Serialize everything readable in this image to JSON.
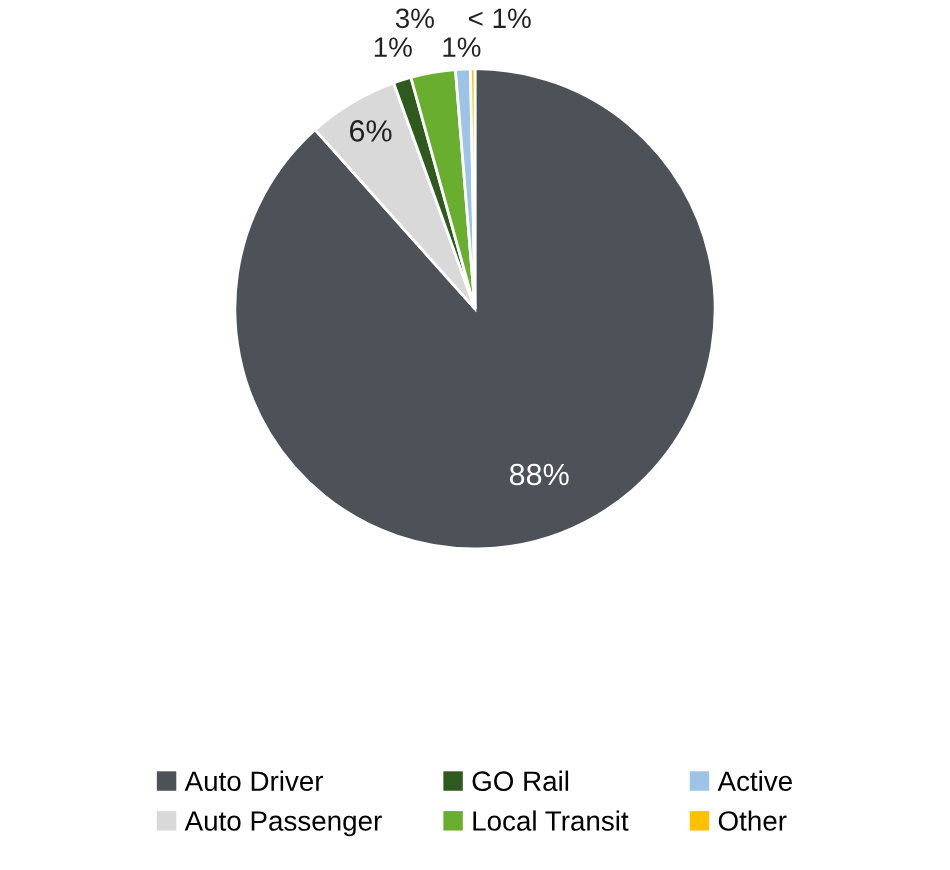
{
  "chart_data": {
    "type": "pie",
    "categories": [
      "Auto Driver",
      "Auto Passenger",
      "GO Rail",
      "Local Transit",
      "Active",
      "Other"
    ],
    "values": [
      88.4,
      6.1,
      1.2,
      3.0,
      1.0,
      0.3
    ],
    "value_labels": [
      "88%",
      "6%",
      "1%",
      "3%",
      "1%",
      "< 1%"
    ],
    "colors": [
      "#4d5258",
      "#d9d9d9",
      "#2f5a1e",
      "#6aae2f",
      "#9dc3e6",
      "#ffc000"
    ],
    "legend": "bottom"
  }
}
